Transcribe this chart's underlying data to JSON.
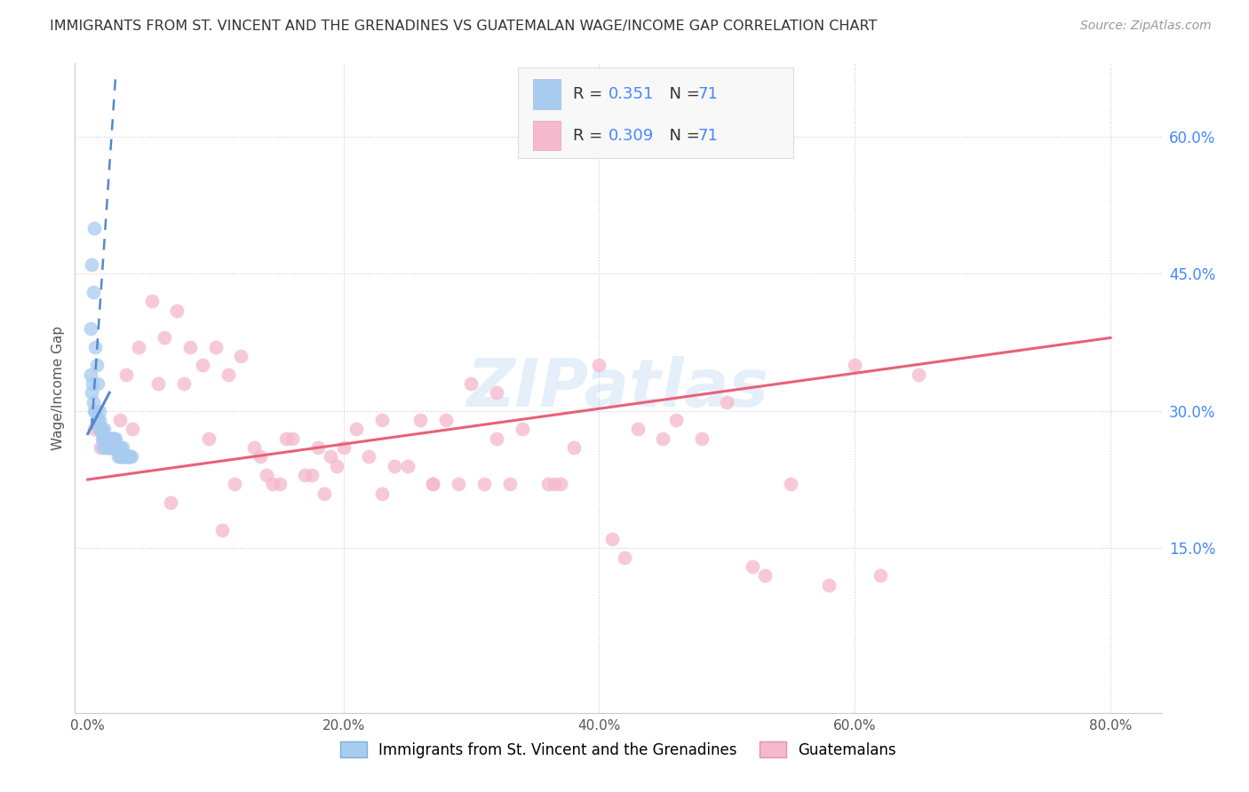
{
  "title": "IMMIGRANTS FROM ST. VINCENT AND THE GRENADINES VS GUATEMALAN WAGE/INCOME GAP CORRELATION CHART",
  "source": "Source: ZipAtlas.com",
  "ylabel": "Wage/Income Gap",
  "x_tick_values": [
    0,
    20,
    40,
    60,
    80
  ],
  "y_tick_values_right": [
    15,
    30,
    45,
    60
  ],
  "y_tick_labels_right": [
    "15.0%",
    "30.0%",
    "45.0%",
    "60.0%"
  ],
  "xlim": [
    -1,
    84
  ],
  "ylim": [
    -3,
    68
  ],
  "blue_R": "0.351",
  "blue_N": "71",
  "pink_R": "0.309",
  "pink_N": "71",
  "blue_color": "#a8ccf0",
  "pink_color": "#f5b8cc",
  "blue_edge_color": "#7aaede",
  "pink_edge_color": "#e890aa",
  "blue_line_color": "#5588cc",
  "pink_line_color": "#e8607a",
  "legend_label_blue": "Immigrants from St. Vincent and the Grenadines",
  "legend_label_pink": "Guatemalans",
  "watermark": "ZIPatlas",
  "blue_scatter_x": [
    0.2,
    0.3,
    0.4,
    0.5,
    0.6,
    0.7,
    0.8,
    0.9,
    1.0,
    1.1,
    1.2,
    1.3,
    1.4,
    1.5,
    1.6,
    1.7,
    1.8,
    1.9,
    2.0,
    2.1,
    2.2,
    2.3,
    2.4,
    2.5,
    2.6,
    2.7,
    2.8,
    2.9,
    3.0,
    3.1,
    3.2,
    3.3,
    3.4,
    0.3,
    0.5,
    0.7,
    0.9,
    1.1,
    1.3,
    1.5,
    1.7,
    1.9,
    2.1,
    2.3,
    2.5,
    2.7,
    2.9,
    3.1,
    0.2,
    0.4,
    0.6,
    0.8,
    1.0,
    1.2,
    1.4,
    1.6,
    1.8,
    2.0,
    2.2,
    2.4,
    2.6,
    2.8,
    3.0,
    3.2,
    0.35,
    0.65,
    0.95,
    1.25,
    1.55,
    1.85,
    2.15
  ],
  "blue_scatter_y": [
    39,
    46,
    43,
    50,
    37,
    35,
    33,
    30,
    28,
    27,
    26,
    27,
    26,
    27,
    26,
    26,
    26,
    26,
    27,
    26,
    26,
    26,
    25,
    25,
    26,
    25,
    25,
    25,
    25,
    25,
    25,
    25,
    25,
    32,
    30,
    29,
    28,
    28,
    27,
    27,
    27,
    26,
    26,
    26,
    26,
    26,
    25,
    25,
    34,
    31,
    30,
    29,
    28,
    27,
    27,
    27,
    26,
    27,
    26,
    26,
    25,
    25,
    25,
    25,
    33,
    30,
    29,
    28,
    27,
    27,
    27
  ],
  "pink_scatter_x": [
    0.5,
    1.0,
    2.0,
    3.0,
    4.0,
    5.0,
    6.0,
    7.0,
    8.0,
    9.0,
    10.0,
    11.0,
    12.0,
    13.0,
    14.0,
    15.0,
    16.0,
    17.0,
    18.0,
    19.0,
    20.0,
    22.0,
    24.0,
    26.0,
    28.0,
    30.0,
    32.0,
    34.0,
    36.0,
    38.0,
    40.0,
    43.0,
    46.0,
    50.0,
    55.0,
    60.0,
    65.0,
    3.5,
    5.5,
    7.5,
    9.5,
    11.5,
    13.5,
    15.5,
    17.5,
    19.5,
    21.0,
    23.0,
    25.0,
    27.0,
    29.0,
    31.0,
    33.0,
    37.0,
    41.0,
    45.0,
    48.0,
    53.0,
    58.0,
    2.5,
    6.5,
    10.5,
    14.5,
    18.5,
    23.0,
    27.0,
    32.0,
    36.5,
    42.0,
    52.0,
    62.0
  ],
  "pink_scatter_y": [
    28,
    26,
    27,
    34,
    37,
    42,
    38,
    41,
    37,
    35,
    37,
    34,
    36,
    26,
    23,
    22,
    27,
    23,
    26,
    25,
    26,
    25,
    24,
    29,
    29,
    33,
    32,
    28,
    22,
    26,
    35,
    28,
    29,
    31,
    22,
    35,
    34,
    28,
    33,
    33,
    27,
    22,
    25,
    27,
    23,
    24,
    28,
    29,
    24,
    22,
    22,
    22,
    22,
    22,
    16,
    27,
    27,
    12,
    11,
    29,
    20,
    17,
    22,
    21,
    21,
    22,
    27,
    22,
    14,
    13,
    12
  ],
  "blue_trend_solid_x0": 0.0,
  "blue_trend_solid_y0": 27.5,
  "blue_trend_solid_x1": 1.7,
  "blue_trend_solid_y1": 32.0,
  "blue_trend_dash_x0": 0.3,
  "blue_trend_dash_y0": 28.0,
  "blue_trend_dash_x1": 2.2,
  "blue_trend_dash_y1": 67.0,
  "pink_trend_x0": 0.0,
  "pink_trend_y0": 22.5,
  "pink_trend_x1": 80.0,
  "pink_trend_y1": 38.0
}
